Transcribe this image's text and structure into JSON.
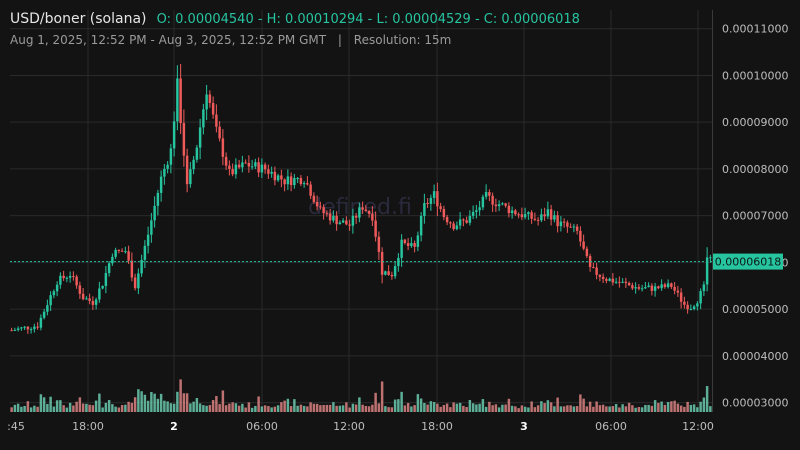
{
  "header": {
    "symbol": "USD/boner (solana)",
    "ohlc": "O: 0.00004540 - H: 0.00010294 - L: 0.00004529 - C: 0.00006018",
    "range": "Aug 1, 2025, 12:52 PM - Aug 3, 2025, 12:52 PM GMT",
    "separator": "|",
    "resolution": "Resolution: 15m"
  },
  "watermark": "defined.fi",
  "colors": {
    "up": "#27c4a0",
    "down": "#ef5a5a",
    "up_vol": "#6fd6b8",
    "down_vol": "#e88a8a",
    "grid": "#2a2a2a",
    "text": "#bdbdbd"
  },
  "chart_data": {
    "type": "candlestick",
    "y_ticks": [
      "0.00011000",
      "0.00010000",
      "0.00009000",
      "0.00008000",
      "0.00007000",
      "0.00006000",
      "0.00005000",
      "0.00004000",
      "0.00003000"
    ],
    "x_ticks": [
      ":45",
      "18:00",
      "2",
      "06:00",
      "12:00",
      "18:00",
      "3",
      "06:00",
      "12:00"
    ],
    "bold_x_ticks": [
      "2",
      "3"
    ],
    "last_price": "0.00006018",
    "ylim": [
      2.8e-05,
      0.000114
    ],
    "open": 4.54e-05,
    "high": 0.00010294,
    "low": 4.529e-05,
    "close": 6.018e-05,
    "key_points": [
      {
        "i": 0,
        "p": 4.55e-05
      },
      {
        "i": 8,
        "p": 4.65e-05
      },
      {
        "i": 14,
        "p": 5.6e-05
      },
      {
        "i": 18,
        "p": 5.75e-05
      },
      {
        "i": 22,
        "p": 5.25e-05
      },
      {
        "i": 25,
        "p": 5.15e-05
      },
      {
        "i": 28,
        "p": 5.55e-05
      },
      {
        "i": 31,
        "p": 6.2e-05
      },
      {
        "i": 35,
        "p": 6.25e-05
      },
      {
        "i": 38,
        "p": 5.5e-05
      },
      {
        "i": 42,
        "p": 6.6e-05
      },
      {
        "i": 46,
        "p": 7.8e-05
      },
      {
        "i": 49,
        "p": 8.4e-05
      },
      {
        "i": 51,
        "p": 9.8e-05
      },
      {
        "i": 54,
        "p": 7.6e-05
      },
      {
        "i": 57,
        "p": 8.5e-05
      },
      {
        "i": 60,
        "p": 9.7e-05
      },
      {
        "i": 63,
        "p": 8.8e-05
      },
      {
        "i": 67,
        "p": 7.9e-05
      },
      {
        "i": 72,
        "p": 8.1e-05
      },
      {
        "i": 78,
        "p": 8e-05
      },
      {
        "i": 84,
        "p": 7.75e-05
      },
      {
        "i": 90,
        "p": 7.8e-05
      },
      {
        "i": 95,
        "p": 7.1e-05
      },
      {
        "i": 100,
        "p": 6.9e-05
      },
      {
        "i": 104,
        "p": 6.8e-05
      },
      {
        "i": 108,
        "p": 7.2e-05
      },
      {
        "i": 111,
        "p": 7e-05
      },
      {
        "i": 114,
        "p": 5.8e-05
      },
      {
        "i": 117,
        "p": 5.75e-05
      },
      {
        "i": 120,
        "p": 6.4e-05
      },
      {
        "i": 124,
        "p": 6.3e-05
      },
      {
        "i": 127,
        "p": 7.2e-05
      },
      {
        "i": 130,
        "p": 7.45e-05
      },
      {
        "i": 133,
        "p": 7e-05
      },
      {
        "i": 136,
        "p": 6.8e-05
      },
      {
        "i": 140,
        "p": 6.9e-05
      },
      {
        "i": 143,
        "p": 7.1e-05
      },
      {
        "i": 146,
        "p": 7.4e-05
      },
      {
        "i": 150,
        "p": 7.25e-05
      },
      {
        "i": 154,
        "p": 7.1e-05
      },
      {
        "i": 158,
        "p": 7e-05
      },
      {
        "i": 162,
        "p": 6.9e-05
      },
      {
        "i": 165,
        "p": 7.1e-05
      },
      {
        "i": 168,
        "p": 6.85e-05
      },
      {
        "i": 171,
        "p": 6.75e-05
      },
      {
        "i": 174,
        "p": 6.65e-05
      },
      {
        "i": 178,
        "p": 5.85e-05
      },
      {
        "i": 183,
        "p": 5.65e-05
      },
      {
        "i": 188,
        "p": 5.55e-05
      },
      {
        "i": 193,
        "p": 5.45e-05
      },
      {
        "i": 198,
        "p": 5.45e-05
      },
      {
        "i": 203,
        "p": 5.5e-05
      },
      {
        "i": 207,
        "p": 5.1e-05
      },
      {
        "i": 209,
        "p": 5.05e-05
      },
      {
        "i": 211,
        "p": 5.2e-05
      },
      {
        "i": 213,
        "p": 5.45e-05
      },
      {
        "i": 214,
        "p": 6.1e-05
      },
      {
        "i": 215,
        "p": 6.02e-05
      }
    ],
    "candle_count": 216
  }
}
